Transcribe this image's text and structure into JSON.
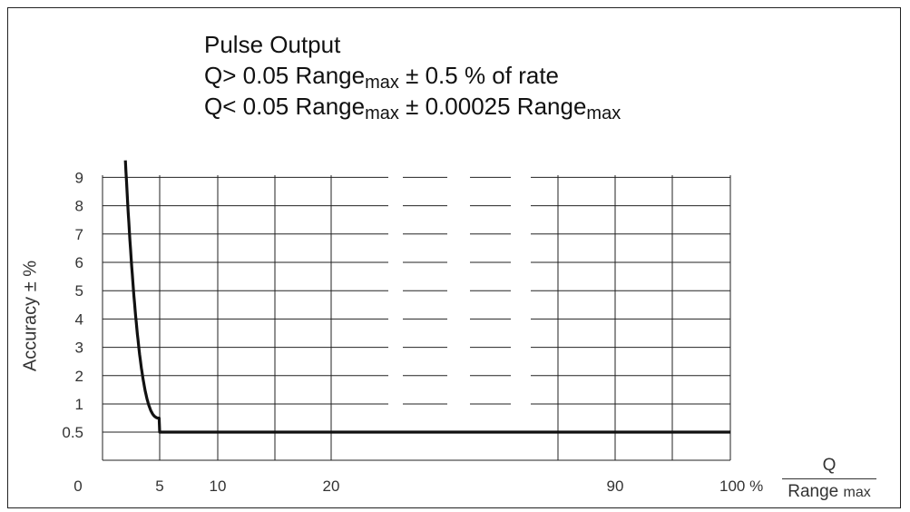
{
  "title": {
    "line1": "Pulse Output",
    "line2": {
      "pre": "Q> 0.05 Range",
      "sub": "max",
      "post": " ± 0.5 % of rate"
    },
    "line3": {
      "pre": "Q< 0.05 Range",
      "sub": "max",
      "mid": " ± 0.00025 Range",
      "sub2": "max"
    }
  },
  "ylabel": "Accuracy ± %",
  "xunit": {
    "numerator": "Q",
    "denominator": "Range",
    "denominator_sub": "max"
  },
  "chart_data": {
    "type": "line",
    "y_ticks": [
      "0.5",
      "1",
      "2",
      "3",
      "4",
      "5",
      "6",
      "7",
      "8",
      "9"
    ],
    "x_ticks": [
      {
        "label": "0",
        "value": 0
      },
      {
        "label": "5",
        "value": 5
      },
      {
        "label": "10",
        "value": 10
      },
      {
        "label": "20",
        "value": 20
      },
      {
        "label": "90",
        "value": 90
      },
      {
        "label": "100 %",
        "value": 100
      }
    ],
    "x_axis_break": true,
    "series": [
      {
        "x": [
          2,
          2.5,
          3,
          3.5,
          4,
          4.5,
          5,
          10,
          20,
          90,
          100
        ],
        "y": [
          9,
          5.5,
          3.3,
          2,
          1.2,
          0.7,
          0.5,
          0.5,
          0.5,
          0.5,
          0.5
        ]
      }
    ],
    "grid": true,
    "colors": {
      "curve": "#111111",
      "grid": "#222222"
    }
  }
}
